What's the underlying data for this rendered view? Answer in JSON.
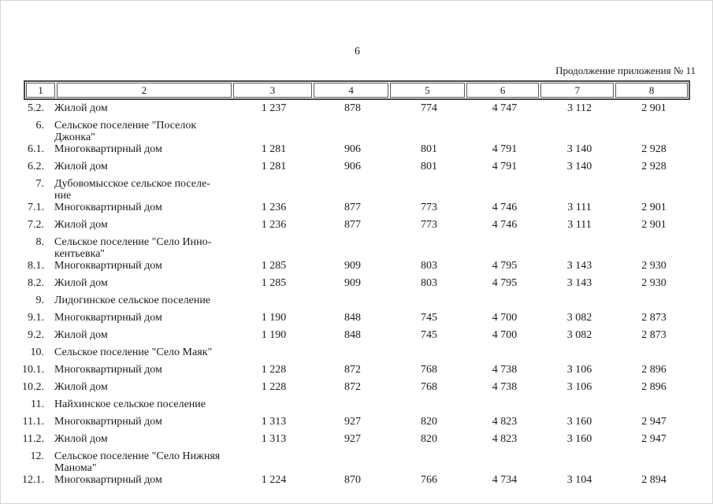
{
  "page": {
    "number": "6",
    "caption": "Продолжение приложения № 11"
  },
  "table": {
    "header_cols": [
      "1",
      "2",
      "3",
      "4",
      "5",
      "6",
      "7",
      "8"
    ],
    "rows": [
      {
        "num": "5.2.",
        "name_lines": [
          "Жилой дом"
        ],
        "values": [
          "1 237",
          "878",
          "774",
          "4 747",
          "3 112",
          "2 901"
        ]
      },
      {
        "num": "6.",
        "name_lines": [
          "Сельское поселение \"Поселок",
          "Джонка\""
        ],
        "values": [
          "",
          "",
          "",
          "",
          "",
          ""
        ]
      },
      {
        "num": "6.1.",
        "name_lines": [
          "Многоквартирный дом"
        ],
        "values": [
          "1 281",
          "906",
          "801",
          "4 791",
          "3 140",
          "2 928"
        ]
      },
      {
        "num": "6.2.",
        "name_lines": [
          "Жилой дом"
        ],
        "values": [
          "1 281",
          "906",
          "801",
          "4 791",
          "3 140",
          "2 928"
        ]
      },
      {
        "num": "7.",
        "name_lines": [
          "Дубовомысское сельское поселе-",
          "ние"
        ],
        "values": [
          "",
          "",
          "",
          "",
          "",
          ""
        ]
      },
      {
        "num": "7.1.",
        "name_lines": [
          "Многоквартирный дом"
        ],
        "values": [
          "1 236",
          "877",
          "773",
          "4 746",
          "3 111",
          "2 901"
        ]
      },
      {
        "num": "7.2.",
        "name_lines": [
          "Жилой дом"
        ],
        "values": [
          "1 236",
          "877",
          "773",
          "4 746",
          "3 111",
          "2 901"
        ]
      },
      {
        "num": "8.",
        "name_lines": [
          "Сельское поселение \"Село Инно-",
          "кентьевка\""
        ],
        "values": [
          "",
          "",
          "",
          "",
          "",
          ""
        ]
      },
      {
        "num": "8.1.",
        "name_lines": [
          "Многоквартирный дом"
        ],
        "values": [
          "1 285",
          "909",
          "803",
          "4 795",
          "3 143",
          "2 930"
        ]
      },
      {
        "num": "8.2.",
        "name_lines": [
          "Жилой дом"
        ],
        "values": [
          "1 285",
          "909",
          "803",
          "4 795",
          "3 143",
          "2 930"
        ]
      },
      {
        "num": "9.",
        "name_lines": [
          "Лидогинское сельское поселение"
        ],
        "values": [
          "",
          "",
          "",
          "",
          "",
          ""
        ]
      },
      {
        "num": "9.1.",
        "name_lines": [
          "Многоквартирный дом"
        ],
        "values": [
          "1 190",
          "848",
          "745",
          "4 700",
          "3 082",
          "2 873"
        ]
      },
      {
        "num": "9.2.",
        "name_lines": [
          "Жилой дом"
        ],
        "values": [
          "1 190",
          "848",
          "745",
          "4 700",
          "3 082",
          "2 873"
        ]
      },
      {
        "num": "10.",
        "name_lines": [
          "Сельское поселение \"Село Маяк\""
        ],
        "values": [
          "",
          "",
          "",
          "",
          "",
          ""
        ]
      },
      {
        "num": "10.1.",
        "name_lines": [
          "Многоквартирный дом"
        ],
        "values": [
          "1 228",
          "872",
          "768",
          "4 738",
          "3 106",
          "2 896"
        ]
      },
      {
        "num": "10.2.",
        "name_lines": [
          "Жилой дом"
        ],
        "values": [
          "1 228",
          "872",
          "768",
          "4 738",
          "3 106",
          "2 896"
        ]
      },
      {
        "num": "11.",
        "name_lines": [
          "Найхинское сельское поселение"
        ],
        "values": [
          "",
          "",
          "",
          "",
          "",
          ""
        ]
      },
      {
        "num": "11.1.",
        "name_lines": [
          "Многоквартирный дом"
        ],
        "values": [
          "1 313",
          "927",
          "820",
          "4 823",
          "3 160",
          "2 947"
        ]
      },
      {
        "num": "11.2.",
        "name_lines": [
          "Жилой дом"
        ],
        "values": [
          "1 313",
          "927",
          "820",
          "4 823",
          "3 160",
          "2 947"
        ]
      },
      {
        "num": "12.",
        "name_lines": [
          "Сельское поселение \"Село Нижняя",
          "Манома\""
        ],
        "values": [
          "",
          "",
          "",
          "",
          "",
          ""
        ]
      },
      {
        "num": "12.1.",
        "name_lines": [
          "Многоквартирный дом"
        ],
        "values": [
          "1 224",
          "870",
          "766",
          "4 734",
          "3 104",
          "2 894"
        ]
      }
    ]
  }
}
